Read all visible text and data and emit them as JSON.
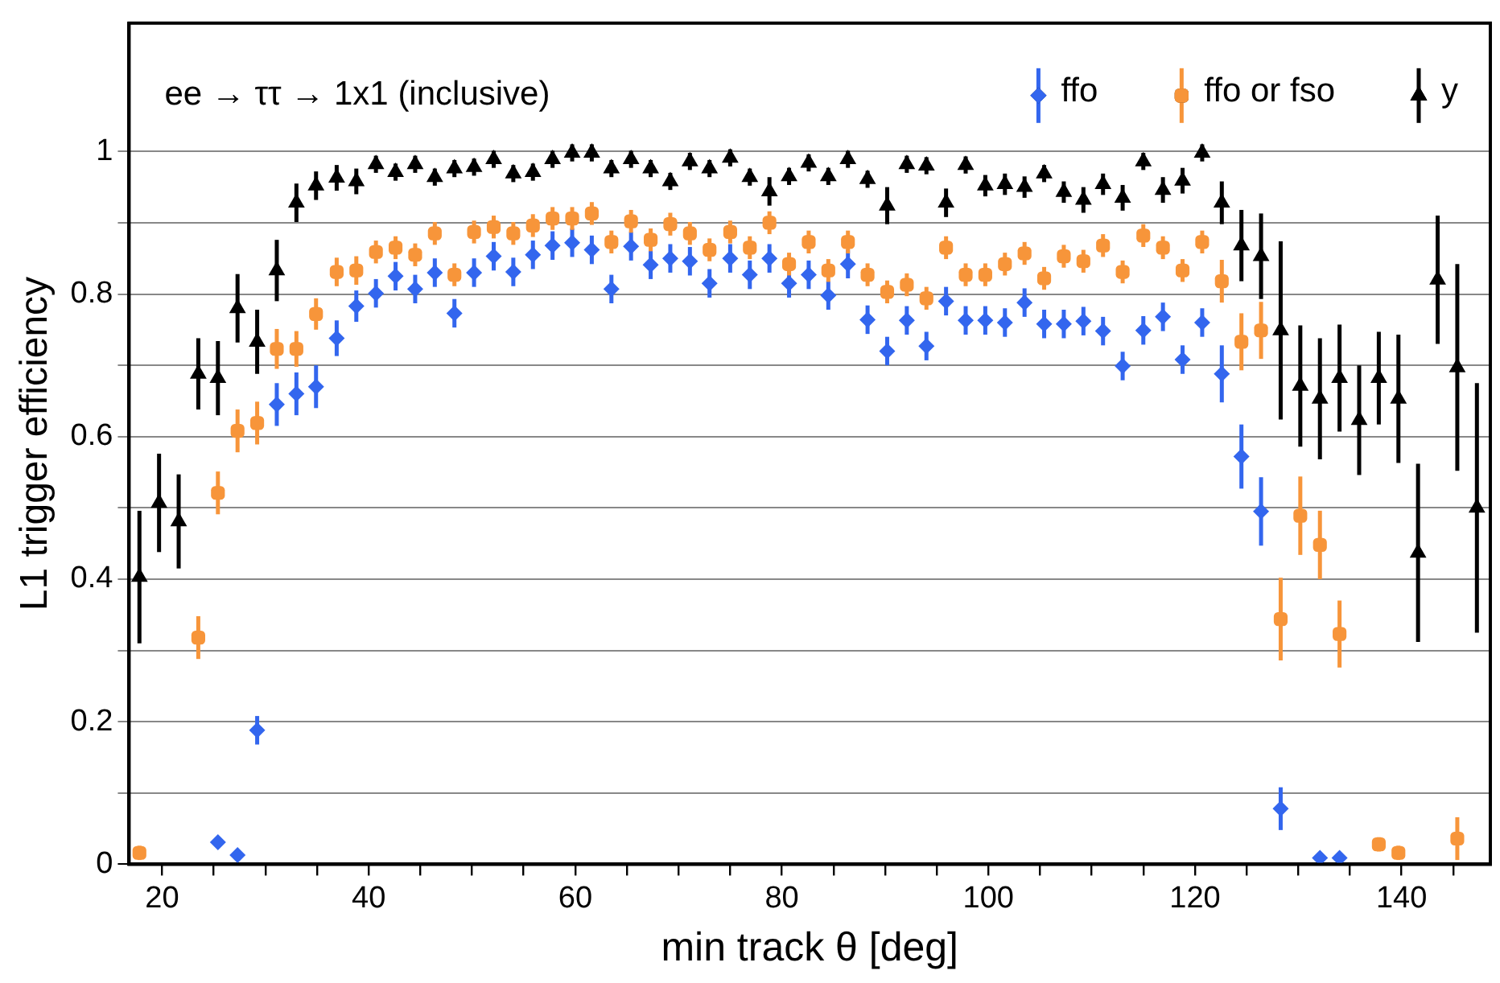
{
  "chart_data": {
    "type": "scatter",
    "xlabel": "min track θ [deg]",
    "ylabel": "L1 trigger efficiency",
    "annotations": [
      "ee → ττ → 1x1 (inclusive)"
    ],
    "x": [
      17.8,
      19.7,
      21.6,
      23.5,
      25.4,
      27.3,
      29.2,
      31.1,
      33.0,
      34.9,
      36.9,
      38.8,
      40.7,
      42.6,
      44.5,
      46.4,
      48.3,
      50.2,
      52.1,
      54.0,
      55.9,
      57.8,
      59.7,
      61.6,
      63.5,
      65.4,
      67.3,
      69.2,
      71.1,
      73.0,
      75.0,
      76.9,
      78.8,
      80.7,
      82.6,
      84.5,
      86.4,
      88.3,
      90.2,
      92.1,
      94.0,
      95.9,
      97.8,
      99.7,
      101.6,
      103.5,
      105.4,
      107.3,
      109.2,
      111.1,
      113.0,
      115.0,
      116.9,
      118.8,
      120.7,
      122.6,
      124.5,
      126.4,
      128.3,
      130.2,
      132.1,
      134.0,
      135.9,
      137.8,
      139.7,
      141.6,
      143.5,
      145.4,
      147.3
    ],
    "series": [
      {
        "name": "ffo",
        "color": "#3366ee",
        "marker": "diamond",
        "values": [
          null,
          null,
          null,
          null,
          0.031,
          0.013,
          0.188,
          0.645,
          0.66,
          0.67,
          0.738,
          0.783,
          0.801,
          0.825,
          0.807,
          0.83,
          0.773,
          0.83,
          0.853,
          0.831,
          0.855,
          0.868,
          0.872,
          0.862,
          0.807,
          0.867,
          0.841,
          0.85,
          0.846,
          0.815,
          0.85,
          0.827,
          0.85,
          0.815,
          0.827,
          0.798,
          0.842,
          0.764,
          0.72,
          0.763,
          0.727,
          0.79,
          0.763,
          0.763,
          0.76,
          0.788,
          0.758,
          0.758,
          0.762,
          0.748,
          0.699,
          0.749,
          0.768,
          0.708,
          0.76,
          0.688,
          0.572,
          0.495,
          0.078,
          null,
          0.009,
          0.009,
          null,
          null,
          null,
          null,
          null,
          null,
          null
        ],
        "errors": [
          null,
          null,
          null,
          null,
          null,
          null,
          0.02,
          0.03,
          0.03,
          0.03,
          0.025,
          0.022,
          0.02,
          0.02,
          0.02,
          0.02,
          0.02,
          0.02,
          0.02,
          0.02,
          0.02,
          0.02,
          0.02,
          0.02,
          0.02,
          0.02,
          0.02,
          0.02,
          0.02,
          0.02,
          0.02,
          0.02,
          0.02,
          0.02,
          0.02,
          0.02,
          0.02,
          0.02,
          0.02,
          0.02,
          0.02,
          0.02,
          0.02,
          0.02,
          0.02,
          0.02,
          0.02,
          0.02,
          0.02,
          0.02,
          0.02,
          0.02,
          0.02,
          0.02,
          0.02,
          0.04,
          0.045,
          0.048,
          0.03,
          null,
          null,
          null,
          null,
          null,
          null,
          null,
          null,
          null,
          null
        ]
      },
      {
        "name": "ffo or fso",
        "color": "#f7953a",
        "marker": "square",
        "values": [
          0.016,
          null,
          null,
          0.318,
          0.521,
          0.608,
          0.619,
          0.723,
          0.723,
          0.772,
          0.831,
          0.833,
          0.859,
          0.865,
          0.855,
          0.885,
          0.827,
          0.887,
          0.894,
          0.885,
          0.896,
          0.906,
          0.906,
          0.913,
          0.873,
          0.902,
          0.876,
          0.898,
          0.885,
          0.862,
          0.887,
          0.865,
          0.9,
          0.842,
          0.873,
          0.833,
          0.873,
          0.827,
          0.803,
          0.813,
          0.794,
          0.865,
          0.827,
          0.827,
          0.842,
          0.857,
          0.822,
          0.853,
          0.846,
          0.868,
          0.831,
          0.882,
          0.865,
          0.833,
          0.873,
          0.818,
          0.733,
          0.749,
          0.344,
          0.489,
          0.448,
          0.323,
          null,
          0.028,
          0.016,
          null,
          null,
          0.036,
          null
        ],
        "errors": [
          0.01,
          null,
          null,
          0.03,
          0.03,
          0.03,
          0.03,
          0.028,
          0.025,
          0.022,
          0.02,
          0.02,
          0.016,
          0.016,
          0.016,
          0.016,
          0.016,
          0.016,
          0.016,
          0.016,
          0.016,
          0.016,
          0.016,
          0.016,
          0.016,
          0.016,
          0.016,
          0.016,
          0.016,
          0.016,
          0.016,
          0.016,
          0.016,
          0.016,
          0.016,
          0.016,
          0.016,
          0.016,
          0.016,
          0.016,
          0.016,
          0.016,
          0.016,
          0.016,
          0.016,
          0.016,
          0.016,
          0.016,
          0.016,
          0.016,
          0.016,
          0.016,
          0.016,
          0.016,
          0.016,
          0.03,
          0.04,
          0.04,
          0.058,
          0.055,
          0.048,
          0.047,
          null,
          0.01,
          0.01,
          null,
          null,
          0.03,
          null
        ]
      },
      {
        "name": "y",
        "color": "#000000",
        "marker": "triangle",
        "values": [
          0.403,
          0.507,
          0.481,
          0.688,
          0.682,
          0.78,
          0.733,
          0.833,
          0.928,
          0.952,
          0.963,
          0.958,
          0.982,
          0.971,
          0.982,
          0.964,
          0.976,
          0.978,
          0.989,
          0.969,
          0.971,
          0.989,
          0.998,
          0.998,
          0.976,
          0.989,
          0.976,
          0.958,
          0.986,
          0.976,
          0.991,
          0.964,
          0.944,
          0.965,
          0.984,
          0.965,
          0.989,
          0.961,
          0.924,
          0.982,
          0.98,
          0.928,
          0.981,
          0.952,
          0.954,
          0.95,
          0.969,
          0.943,
          0.932,
          0.954,
          0.935,
          0.986,
          0.946,
          0.959,
          0.998,
          0.928,
          0.868,
          0.853,
          0.749,
          0.671,
          0.653,
          0.682,
          0.623,
          0.682,
          0.653,
          0.437,
          0.82,
          0.697,
          0.5
        ],
        "errors": [
          0.093,
          0.069,
          0.066,
          0.05,
          0.052,
          0.048,
          0.045,
          0.043,
          0.027,
          0.02,
          0.018,
          0.018,
          0.012,
          0.012,
          0.012,
          0.012,
          0.012,
          0.012,
          0.012,
          0.012,
          0.012,
          0.012,
          0.012,
          0.012,
          0.012,
          0.012,
          0.012,
          0.012,
          0.012,
          0.012,
          0.012,
          0.012,
          0.02,
          0.012,
          0.012,
          0.012,
          0.012,
          0.012,
          0.026,
          0.012,
          0.012,
          0.02,
          0.012,
          0.015,
          0.015,
          0.015,
          0.012,
          0.015,
          0.018,
          0.015,
          0.018,
          0.012,
          0.018,
          0.018,
          0.012,
          0.03,
          0.05,
          0.06,
          0.125,
          0.085,
          0.085,
          0.075,
          0.077,
          0.065,
          0.09,
          0.125,
          0.09,
          0.145,
          0.175
        ]
      }
    ],
    "xlim": [
      16.8,
      148.6
    ],
    "xticks": [
      20,
      {
        "value": 25,
        "label": null
      },
      {
        "value": 30,
        "label": null
      },
      {
        "value": 35,
        "label": null
      },
      40,
      {
        "value": 45,
        "label": null
      },
      {
        "value": 50,
        "label": null
      },
      {
        "value": 55,
        "label": null
      },
      60,
      {
        "value": 65,
        "label": null
      },
      {
        "value": 70,
        "label": null
      },
      {
        "value": 75,
        "label": null
      },
      80,
      {
        "value": 85,
        "label": null
      },
      {
        "value": 90,
        "label": null
      },
      {
        "value": 95,
        "label": null
      },
      100,
      {
        "value": 105,
        "label": null
      },
      {
        "value": 110,
        "label": null
      },
      {
        "value": 115,
        "label": null
      },
      120,
      {
        "value": 125,
        "label": null
      },
      {
        "value": 130,
        "label": null
      },
      {
        "value": 135,
        "label": null
      },
      140,
      {
        "value": 145,
        "label": null
      }
    ],
    "ylim": [
      0,
      1.18
    ],
    "yticks": [
      0,
      {
        "value": 0.1,
        "label": null
      },
      0.2,
      {
        "value": 0.3,
        "label": null
      },
      0.4,
      {
        "value": 0.5,
        "label": null
      },
      0.6,
      {
        "value": 0.7,
        "label": null
      },
      0.8,
      {
        "value": 0.9,
        "label": null
      },
      1
    ],
    "grid": "y",
    "legend": "top right"
  }
}
